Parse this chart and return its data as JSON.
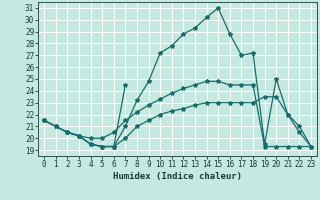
{
  "xlabel": "Humidex (Indice chaleur)",
  "xlim": [
    -0.5,
    23.5
  ],
  "ylim": [
    18.5,
    31.5
  ],
  "xticks": [
    0,
    1,
    2,
    3,
    4,
    5,
    6,
    7,
    8,
    9,
    10,
    11,
    12,
    13,
    14,
    15,
    16,
    17,
    18,
    19,
    20,
    21,
    22,
    23
  ],
  "yticks": [
    19,
    20,
    21,
    22,
    23,
    24,
    25,
    26,
    27,
    28,
    29,
    30,
    31
  ],
  "background_color": "#c5e8e0",
  "grid_color": "#ffffff",
  "line_color": "#1a6b6b",
  "line1_x": [
    0,
    1,
    2,
    3,
    4,
    5,
    6,
    7,
    8,
    9,
    10,
    11,
    12,
    13,
    14,
    15,
    16,
    17,
    18,
    19,
    20,
    21,
    22,
    23
  ],
  "line1_y": [
    21.5,
    21.0,
    20.5,
    20.2,
    19.5,
    19.3,
    19.3,
    21.0,
    23.2,
    24.8,
    27.2,
    27.8,
    28.8,
    29.3,
    30.2,
    31.0,
    28.8,
    27.0,
    27.2,
    19.5,
    25.0,
    22.0,
    20.5,
    19.3
  ],
  "line2_x": [
    0,
    1,
    2,
    3,
    4,
    5,
    6,
    7,
    8,
    9,
    10,
    11,
    12,
    13,
    14,
    15,
    16,
    17,
    18,
    19,
    20,
    21,
    22,
    23
  ],
  "line2_y": [
    21.5,
    21.0,
    20.5,
    20.2,
    20.0,
    20.0,
    20.5,
    21.5,
    22.2,
    22.8,
    23.3,
    23.8,
    24.2,
    24.5,
    24.8,
    24.8,
    24.5,
    24.5,
    24.5,
    19.3,
    19.3,
    19.3,
    19.3,
    19.3
  ],
  "line3_x": [
    0,
    1,
    2,
    3,
    4,
    5,
    6,
    7,
    8,
    9,
    10,
    11,
    12,
    13,
    14,
    15,
    16,
    17,
    18,
    19,
    20,
    21,
    22,
    23
  ],
  "line3_y": [
    21.5,
    21.0,
    20.5,
    20.2,
    19.5,
    19.3,
    19.3,
    20.0,
    21.0,
    21.5,
    22.0,
    22.3,
    22.5,
    22.8,
    23.0,
    23.0,
    23.0,
    23.0,
    23.0,
    23.5,
    23.5,
    22.0,
    21.0,
    19.3
  ],
  "spike_x": [
    2,
    3,
    4,
    5,
    6,
    7
  ],
  "spike_y": [
    20.5,
    20.2,
    19.5,
    19.3,
    19.3,
    24.5
  ],
  "marker": "*",
  "marker_size": 3,
  "linewidth": 0.9,
  "tick_fontsize": 5.5,
  "xlabel_fontsize": 6.5
}
